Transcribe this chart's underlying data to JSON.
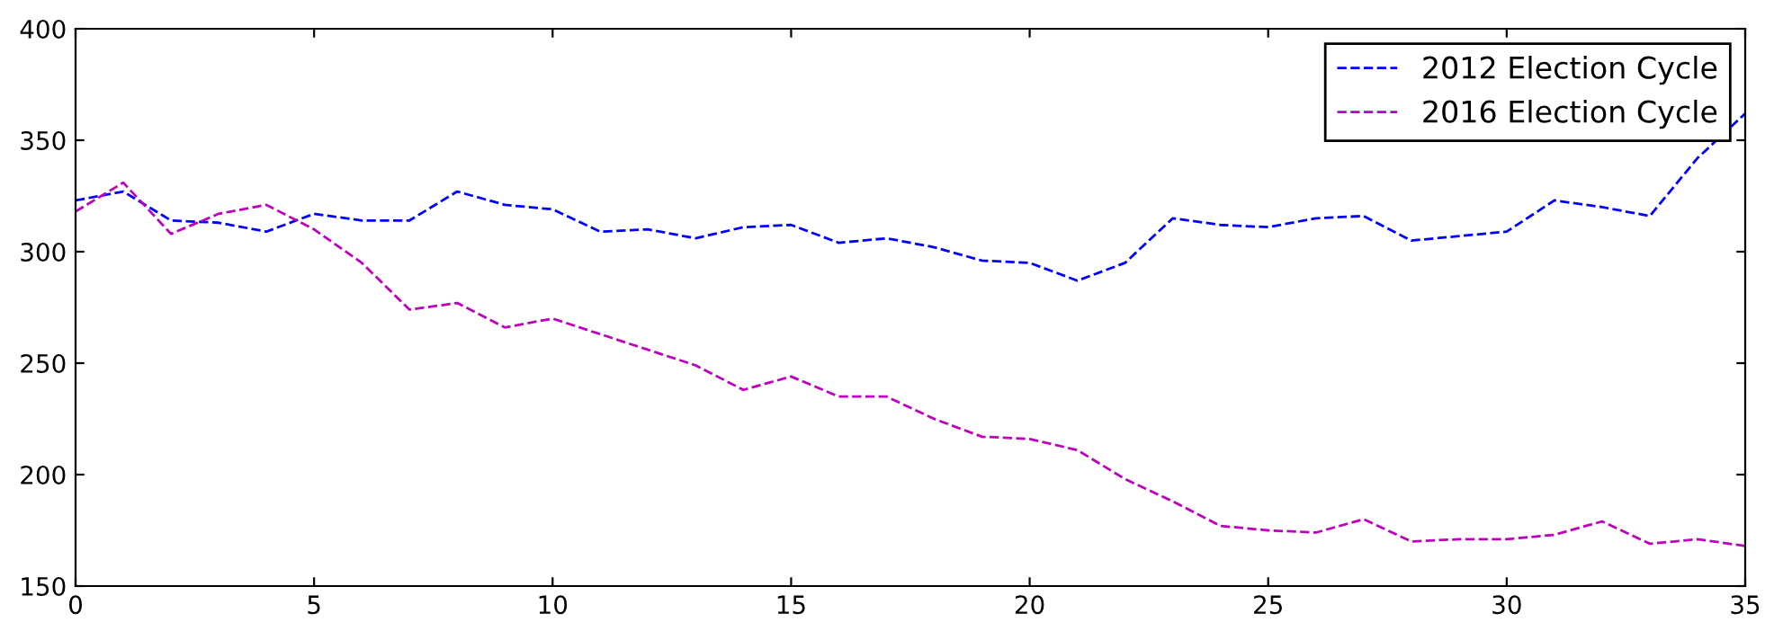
{
  "chart_data": {
    "type": "line",
    "x": [
      0,
      1,
      2,
      3,
      4,
      5,
      6,
      7,
      8,
      9,
      10,
      11,
      12,
      13,
      14,
      15,
      16,
      17,
      18,
      19,
      20,
      21,
      22,
      23,
      24,
      25,
      26,
      27,
      28,
      29,
      30,
      31,
      32,
      33,
      34,
      35
    ],
    "series": [
      {
        "name": "2012 Election Cycle",
        "color": "#0000ff",
        "values": [
          323,
          327,
          314,
          313,
          309,
          317,
          314,
          314,
          327,
          321,
          319,
          309,
          310,
          306,
          311,
          312,
          304,
          306,
          302,
          296,
          295,
          287,
          295,
          315,
          312,
          311,
          315,
          316,
          305,
          307,
          309,
          323,
          320,
          316,
          342,
          362
        ]
      },
      {
        "name": "2016 Election Cycle",
        "color": "#bf00bf",
        "values": [
          318,
          331,
          308,
          317,
          321,
          310,
          295,
          274,
          277,
          266,
          270,
          263,
          256,
          249,
          238,
          244,
          235,
          235,
          225,
          217,
          216,
          211,
          198,
          188,
          177,
          175,
          174,
          180,
          170,
          171,
          171,
          173,
          179,
          169,
          171,
          168
        ]
      }
    ],
    "xlim": [
      0,
      35
    ],
    "ylim": [
      150,
      400
    ],
    "xticks": [
      0,
      5,
      10,
      15,
      20,
      25,
      30,
      35
    ],
    "yticks": [
      150,
      200,
      250,
      300,
      350,
      400
    ],
    "line_style": "dashed",
    "marker": "none",
    "grid": false,
    "legend": "top right"
  }
}
